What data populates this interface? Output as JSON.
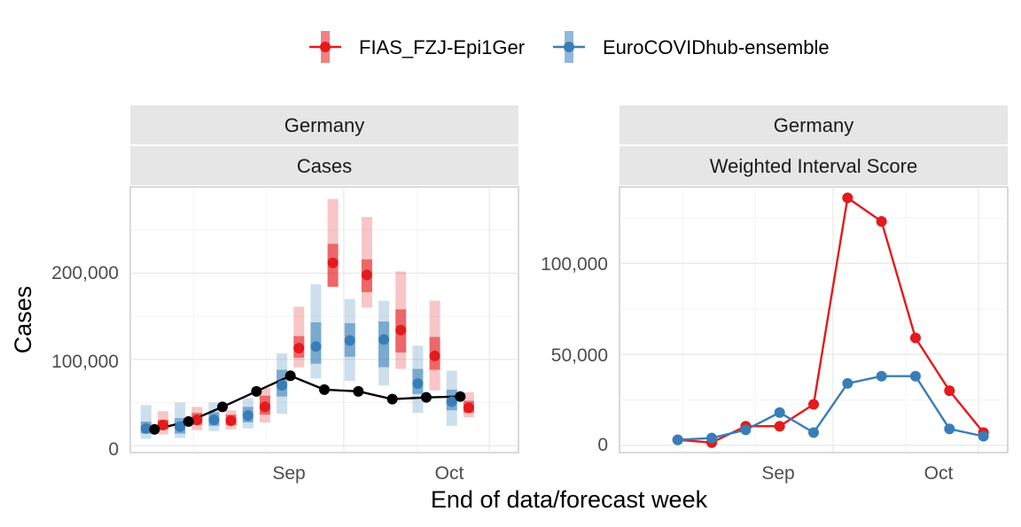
{
  "colors": {
    "FIAS_FZJ-Epi1Ger": "#e41a1c",
    "EuroCOVIDhub-ensemble": "#377eb8",
    "observed": "#000000"
  },
  "legend": {
    "position": "top",
    "items": [
      "FIAS_FZJ-Epi1Ger",
      "EuroCOVIDhub-ensemble"
    ]
  },
  "axes": {
    "xlabel": "End of data/forecast week",
    "ylabel": "Cases"
  },
  "chart_data": [
    {
      "type": "line",
      "strips": [
        "Germany",
        "Cases"
      ],
      "x_ticks": [
        "Sep",
        "Oct"
      ],
      "y_ticks": [
        "0",
        "100,000",
        "200,000"
      ],
      "x": [
        "2021-07-24",
        "2021-07-31",
        "2021-08-07",
        "2021-08-14",
        "2021-08-21",
        "2021-08-28",
        "2021-09-04",
        "2021-09-11",
        "2021-09-18",
        "2021-09-25",
        "2021-10-02"
      ],
      "xlim": [
        "2021-07-19",
        "2021-10-07"
      ],
      "ylim": [
        -8000,
        300000
      ],
      "grid": true,
      "observed": {
        "values": [
          19000,
          28000,
          45000,
          63000,
          81000,
          65000,
          63000,
          54000,
          56000,
          57000,
          null
        ]
      },
      "series": [
        {
          "name": "FIAS_FZJ-Epi1Ger",
          "median": [
            24000,
            30000,
            29000,
            45000,
            113000,
            212000,
            198000,
            134000,
            104000,
            44000,
            null
          ],
          "inner": [
            [
              19000,
              30000
            ],
            [
              24000,
              38000
            ],
            [
              24000,
              36000
            ],
            [
              36000,
              58000
            ],
            [
              102000,
              127000
            ],
            [
              184000,
              234000
            ],
            [
              178000,
              216000
            ],
            [
              108000,
              158000
            ],
            [
              88000,
              126000
            ],
            [
              38000,
              52000
            ],
            null
          ],
          "outer": [
            [
              13000,
              40000
            ],
            [
              18000,
              45000
            ],
            [
              19000,
              41000
            ],
            [
              27000,
              67000
            ],
            [
              91000,
              161000
            ],
            [
              185000,
              286000
            ],
            [
              160000,
              265000
            ],
            [
              89000,
              202000
            ],
            [
              64000,
              168000
            ],
            [
              33000,
              62000
            ],
            null
          ]
        },
        {
          "name": "EuroCOVIDhub-ensemble",
          "median": [
            20000,
            22000,
            30000,
            35000,
            70000,
            115000,
            122000,
            123000,
            72000,
            51000,
            null
          ],
          "inner": [
            [
              14000,
              28000
            ],
            [
              14000,
              32000
            ],
            [
              23000,
              39000
            ],
            [
              27000,
              45000
            ],
            [
              57000,
              88000
            ],
            [
              95000,
              143000
            ],
            [
              103000,
              142000
            ],
            [
              91000,
              144000
            ],
            [
              60000,
              89000
            ],
            [
              41000,
              65000
            ],
            null
          ],
          "outer": [
            [
              8000,
              47000
            ],
            [
              9000,
              50000
            ],
            [
              17000,
              50000
            ],
            [
              20000,
              55000
            ],
            [
              37000,
              107000
            ],
            [
              78000,
              187000
            ],
            [
              75000,
              170000
            ],
            [
              70000,
              168000
            ],
            [
              38000,
              116000
            ],
            [
              23000,
              87000
            ],
            null
          ]
        }
      ]
    },
    {
      "type": "line",
      "strips": [
        "Germany",
        "Weighted Interval Score"
      ],
      "x_ticks": [
        "Sep",
        "Oct"
      ],
      "y_ticks": [
        "0",
        "50,000",
        "100,000"
      ],
      "x": [
        "2021-07-24",
        "2021-07-31",
        "2021-08-07",
        "2021-08-14",
        "2021-08-21",
        "2021-08-28",
        "2021-09-04",
        "2021-09-11",
        "2021-09-18",
        "2021-09-25",
        "2021-10-02"
      ],
      "xlim": [
        "2021-07-19",
        "2021-10-07"
      ],
      "ylim": [
        -4000,
        142000
      ],
      "grid": true,
      "series": [
        {
          "name": "FIAS_FZJ-Epi1Ger",
          "values": [
            null,
            3000,
            1500,
            10500,
            10500,
            22500,
            136000,
            123000,
            59000,
            30000,
            7000
          ]
        },
        {
          "name": "EuroCOVIDhub-ensemble",
          "values": [
            null,
            3000,
            4000,
            8500,
            18000,
            7000,
            34000,
            38000,
            38000,
            9000,
            5000
          ]
        }
      ]
    }
  ]
}
